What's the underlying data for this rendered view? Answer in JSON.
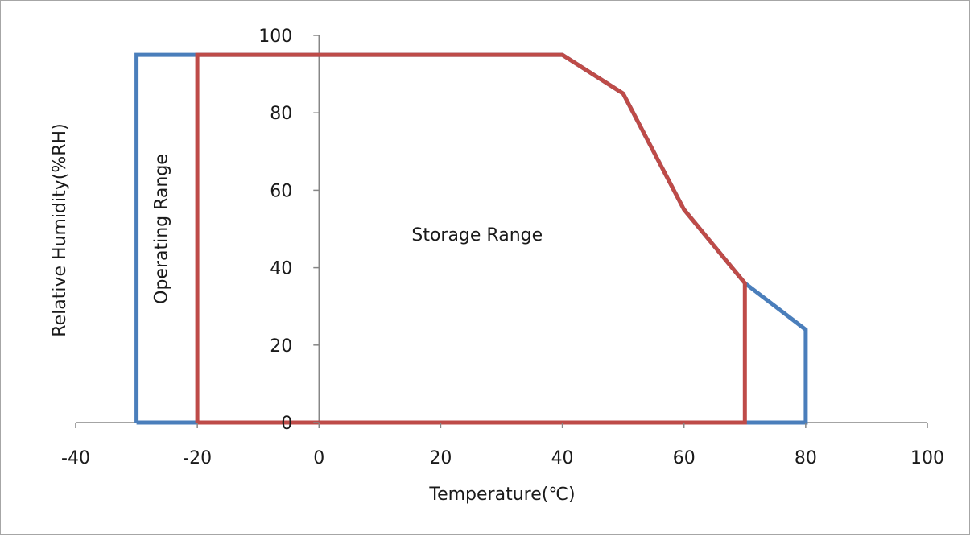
{
  "chart_data": {
    "type": "line",
    "xlabel": "Temperature(℃)",
    "ylabel": "Relative Humidity(%RH)",
    "xlim": [
      -40,
      100
    ],
    "ylim": [
      0,
      100
    ],
    "x_ticks": [
      -40,
      -20,
      0,
      20,
      40,
      60,
      80,
      100
    ],
    "y_ticks": [
      0,
      20,
      40,
      60,
      80,
      100
    ],
    "grid": false,
    "legend": "none",
    "series": [
      {
        "color": "#4a7ebb",
        "points": [
          [
            -30,
            0
          ],
          [
            -30,
            95
          ],
          [
            -20,
            95
          ],
          [
            40,
            95
          ],
          [
            50,
            85
          ],
          [
            60,
            55
          ],
          [
            70,
            36
          ],
          [
            80,
            24
          ],
          [
            80,
            0
          ],
          [
            -30,
            0
          ]
        ]
      },
      {
        "color": "#be4b48",
        "points": [
          [
            -20,
            0
          ],
          [
            -20,
            95
          ],
          [
            40,
            95
          ],
          [
            50,
            85
          ],
          [
            60,
            55
          ],
          [
            70,
            36
          ],
          [
            70,
            0
          ],
          [
            -20,
            0
          ]
        ]
      }
    ],
    "annotations": [
      {
        "text": "Operating Range",
        "x": -25,
        "y": 50,
        "rotation": -90
      },
      {
        "text": "Storage Range",
        "x": 26,
        "y": 47,
        "rotation": 0
      }
    ]
  }
}
